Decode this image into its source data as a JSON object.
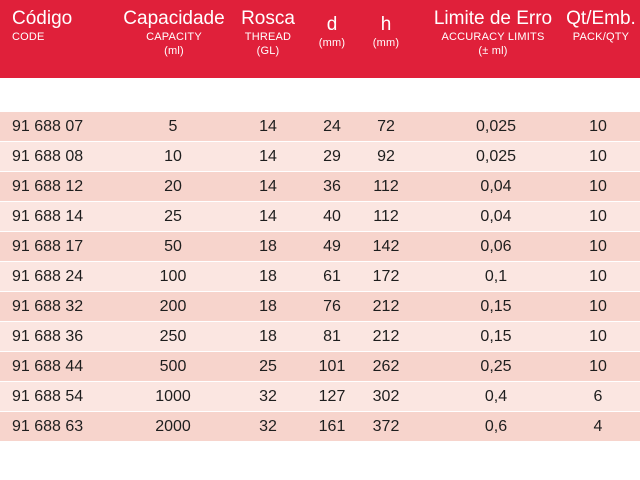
{
  "header": {
    "code": {
      "main": "Código",
      "sub": "CODE"
    },
    "capacity": {
      "main": "Capacidade",
      "sub1": "CAPACITY",
      "sub2": "(ml)"
    },
    "thread": {
      "main": "Rosca",
      "sub1": "THREAD",
      "sub2": "(GL)"
    },
    "d": {
      "main": "d",
      "sub1": "(mm)"
    },
    "h": {
      "main": "h",
      "sub1": "(mm)"
    },
    "accuracy": {
      "main": "Limite de Erro",
      "sub1": "ACCURACY LIMITS",
      "sub2": "(± ml)"
    },
    "qty": {
      "main": "Qt/Emb.",
      "sub1": "PACK/QTY"
    }
  },
  "colors": {
    "header_bg": "#e0203a",
    "row_odd": "#f7d4cc",
    "row_even": "#fbe6e1"
  },
  "rows": [
    {
      "code": "91 688 07",
      "capacity": "5",
      "thread": "14",
      "d": "24",
      "h": "72",
      "accuracy": "0,025",
      "qty": "10"
    },
    {
      "code": "91 688 08",
      "capacity": "10",
      "thread": "14",
      "d": "29",
      "h": "92",
      "accuracy": "0,025",
      "qty": "10"
    },
    {
      "code": "91 688 12",
      "capacity": "20",
      "thread": "14",
      "d": "36",
      "h": "112",
      "accuracy": "0,04",
      "qty": "10"
    },
    {
      "code": "91 688 14",
      "capacity": "25",
      "thread": "14",
      "d": "40",
      "h": "112",
      "accuracy": "0,04",
      "qty": "10"
    },
    {
      "code": "91 688 17",
      "capacity": "50",
      "thread": "18",
      "d": "49",
      "h": "142",
      "accuracy": "0,06",
      "qty": "10"
    },
    {
      "code": "91 688 24",
      "capacity": "100",
      "thread": "18",
      "d": "61",
      "h": "172",
      "accuracy": "0,1",
      "qty": "10"
    },
    {
      "code": "91 688 32",
      "capacity": "200",
      "thread": "18",
      "d": "76",
      "h": "212",
      "accuracy": "0,15",
      "qty": "10"
    },
    {
      "code": "91 688 36",
      "capacity": "250",
      "thread": "18",
      "d": "81",
      "h": "212",
      "accuracy": "0,15",
      "qty": "10"
    },
    {
      "code": "91 688 44",
      "capacity": "500",
      "thread": "25",
      "d": "101",
      "h": "262",
      "accuracy": "0,25",
      "qty": "10"
    },
    {
      "code": "91 688 54",
      "capacity": "1000",
      "thread": "32",
      "d": "127",
      "h": "302",
      "accuracy": "0,4",
      "qty": "6"
    },
    {
      "code": "91 688 63",
      "capacity": "2000",
      "thread": "32",
      "d": "161",
      "h": "372",
      "accuracy": "0,6",
      "qty": "4"
    }
  ]
}
